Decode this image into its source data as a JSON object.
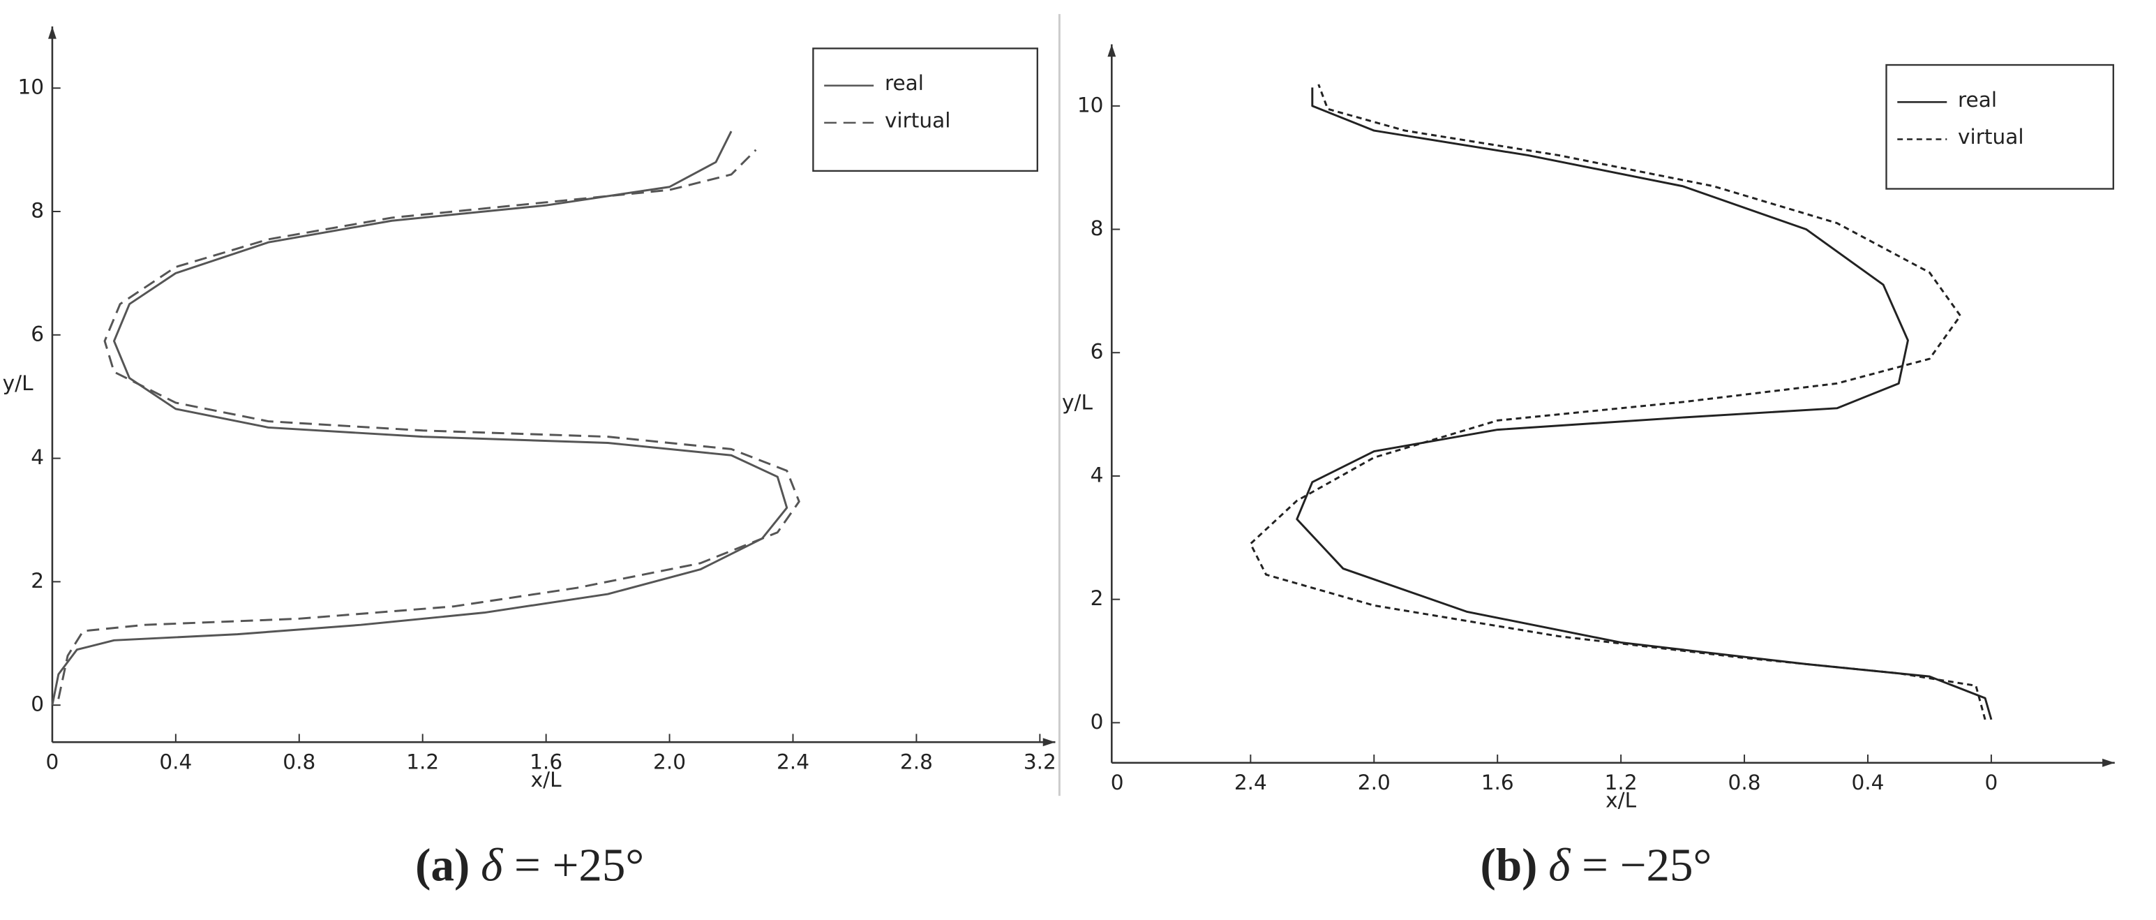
{
  "chart_data": [
    {
      "type": "line",
      "x_label": "x/L",
      "y_label": "y/L",
      "xlim": [
        0,
        3.25
      ],
      "ylim": [
        -0.6,
        11
      ],
      "xticks": [
        0,
        0.4,
        0.8,
        1.2,
        1.6,
        {
          "value": 2,
          "label": "2.0"
        },
        2.4,
        2.8,
        3.2
      ],
      "yticks": [
        0,
        2,
        4,
        6,
        8,
        10
      ],
      "legend": "upper right",
      "caption": {
        "label": "(a)",
        "symbol": "δ",
        "text": " = +25°"
      },
      "series": [
        {
          "name": "real",
          "color": "#555555",
          "dash": "none",
          "x": [
            0,
            0.02,
            0.08,
            0.2,
            0.6,
            1.0,
            1.4,
            1.8,
            2.1,
            2.3,
            2.38,
            2.35,
            2.2,
            1.8,
            1.2,
            0.7,
            0.4,
            0.25,
            0.2,
            0.25,
            0.4,
            0.7,
            1.1,
            1.6,
            2.0,
            2.15,
            2.2
          ],
          "values": [
            0,
            0.5,
            0.9,
            1.05,
            1.15,
            1.3,
            1.5,
            1.8,
            2.2,
            2.7,
            3.2,
            3.7,
            4.05,
            4.25,
            4.35,
            4.5,
            4.8,
            5.3,
            5.9,
            6.5,
            7.0,
            7.5,
            7.85,
            8.1,
            8.4,
            8.8,
            9.3
          ]
        },
        {
          "name": "virtual",
          "color": "#555555",
          "dash": "9,5",
          "x": [
            0.02,
            0.05,
            0.1,
            0.3,
            0.8,
            1.3,
            1.7,
            2.1,
            2.35,
            2.42,
            2.38,
            2.2,
            1.8,
            1.2,
            0.7,
            0.4,
            0.2,
            0.17,
            0.22,
            0.4,
            0.7,
            1.1,
            1.6,
            2.0,
            2.2,
            2.28
          ],
          "values": [
            0.1,
            0.8,
            1.2,
            1.3,
            1.4,
            1.6,
            1.9,
            2.3,
            2.8,
            3.3,
            3.8,
            4.15,
            4.35,
            4.45,
            4.6,
            4.9,
            5.4,
            5.9,
            6.5,
            7.1,
            7.55,
            7.9,
            8.15,
            8.35,
            8.6,
            9.0
          ]
        }
      ]
    },
    {
      "type": "line",
      "x_label": "x/L",
      "y_label": "y/L",
      "xlim": [
        2.85,
        -0.4
      ],
      "ylim": [
        -0.65,
        11
      ],
      "origin_label": "0",
      "xticks": [
        2.4,
        {
          "value": 2,
          "label": "2.0"
        },
        1.6,
        1.2,
        0.8,
        0.4,
        0
      ],
      "yticks": [
        0,
        2,
        4,
        6,
        8,
        10
      ],
      "legend": "upper right",
      "caption": {
        "label": "(b)",
        "symbol": "δ",
        "text": " = −25°"
      },
      "series": [
        {
          "name": "real",
          "color": "#222222",
          "dash": "none",
          "x": [
            0,
            0.02,
            0.2,
            0.6,
            1.2,
            1.7,
            2.1,
            2.25,
            2.2,
            2.0,
            1.6,
            1.0,
            0.5,
            0.3,
            0.27,
            0.35,
            0.6,
            1.0,
            1.5,
            2.0,
            2.2,
            2.2
          ],
          "values": [
            0.05,
            0.4,
            0.75,
            0.95,
            1.3,
            1.8,
            2.5,
            3.3,
            3.9,
            4.4,
            4.75,
            4.95,
            5.1,
            5.5,
            6.2,
            7.1,
            8.0,
            8.7,
            9.2,
            9.6,
            10.0,
            10.3
          ]
        },
        {
          "name": "virtual",
          "color": "#222222",
          "dash": "4,3",
          "x": [
            0.02,
            0.05,
            0.3,
            0.8,
            1.4,
            2.0,
            2.35,
            2.4,
            2.25,
            2.0,
            1.6,
            1.0,
            0.5,
            0.2,
            0.1,
            0.2,
            0.5,
            0.9,
            1.4,
            1.9,
            2.15,
            2.18
          ],
          "values": [
            0.05,
            0.6,
            0.8,
            1.05,
            1.4,
            1.9,
            2.4,
            2.9,
            3.6,
            4.3,
            4.9,
            5.2,
            5.5,
            5.9,
            6.6,
            7.3,
            8.1,
            8.7,
            9.2,
            9.6,
            9.95,
            10.35
          ]
        }
      ]
    }
  ]
}
